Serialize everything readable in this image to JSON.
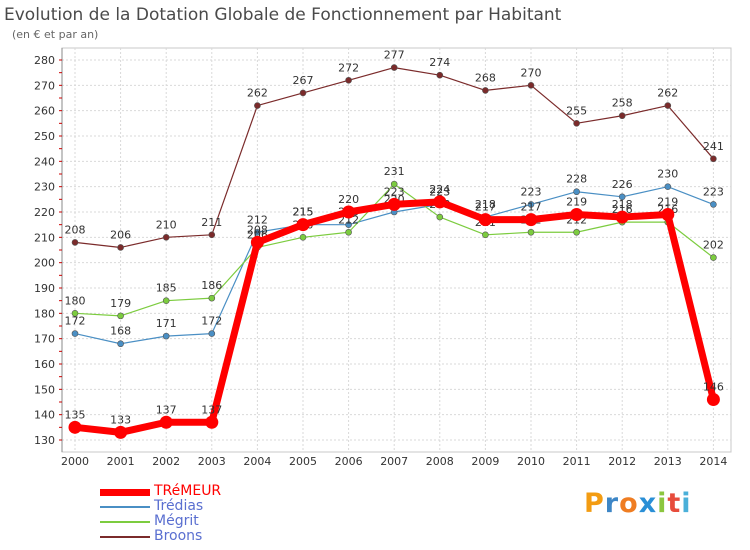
{
  "header": {
    "title": "Evolution de la Dotation Globale de Fonctionnement par Habitant",
    "subtitle": "(en € et par an)"
  },
  "brand": {
    "letters": [
      "P",
      "r",
      "o",
      "x",
      "i",
      "t",
      "i"
    ],
    "colors": [
      "#f39c12",
      "#3d86c6",
      "#ef7d22",
      "#2a8fd6",
      "#8cc63f",
      "#e74c3c",
      "#4ab0d9"
    ]
  },
  "chart_data": {
    "type": "line",
    "title": "Evolution de la Dotation Globale de Fonctionnement par Habitant",
    "subtitle": "(en € et par an)",
    "xlabel": "",
    "ylabel": "",
    "ylim": [
      130,
      280
    ],
    "yticks": [
      130,
      140,
      150,
      160,
      170,
      180,
      190,
      200,
      210,
      220,
      230,
      240,
      250,
      260,
      270,
      280
    ],
    "grid": true,
    "legend_position": "bottom-left",
    "categories": [
      "2000",
      "2001",
      "2002",
      "2003",
      "2004",
      "2005",
      "2006",
      "2007",
      "2008",
      "2009",
      "2010",
      "2011",
      "2012",
      "2013",
      "2014"
    ],
    "series": [
      {
        "name": "Broons",
        "color": "#7b2b2b",
        "values": [
          208,
          206,
          210,
          211,
          262,
          267,
          272,
          277,
          274,
          268,
          270,
          255,
          258,
          262,
          241
        ]
      },
      {
        "name": "Trédias",
        "color": "#4a8fc4",
        "values": [
          172,
          168,
          171,
          172,
          212,
          215,
          215,
          220,
          223,
          218,
          223,
          228,
          226,
          230,
          223
        ]
      },
      {
        "name": "Mégrit",
        "color": "#7ccc3f",
        "values": [
          180,
          179,
          185,
          186,
          206,
          210,
          212,
          231,
          218,
          211,
          212,
          212,
          216,
          216,
          202
        ]
      },
      {
        "name": "TRéMEUR",
        "color": "#ff0000",
        "values": [
          135,
          133,
          137,
          137,
          208,
          215,
          220,
          223,
          224,
          217,
          217,
          219,
          218,
          219,
          146
        ]
      }
    ],
    "legend": [
      "TRéMEUR",
      "Trédias",
      "Mégrit",
      "Broons"
    ]
  }
}
